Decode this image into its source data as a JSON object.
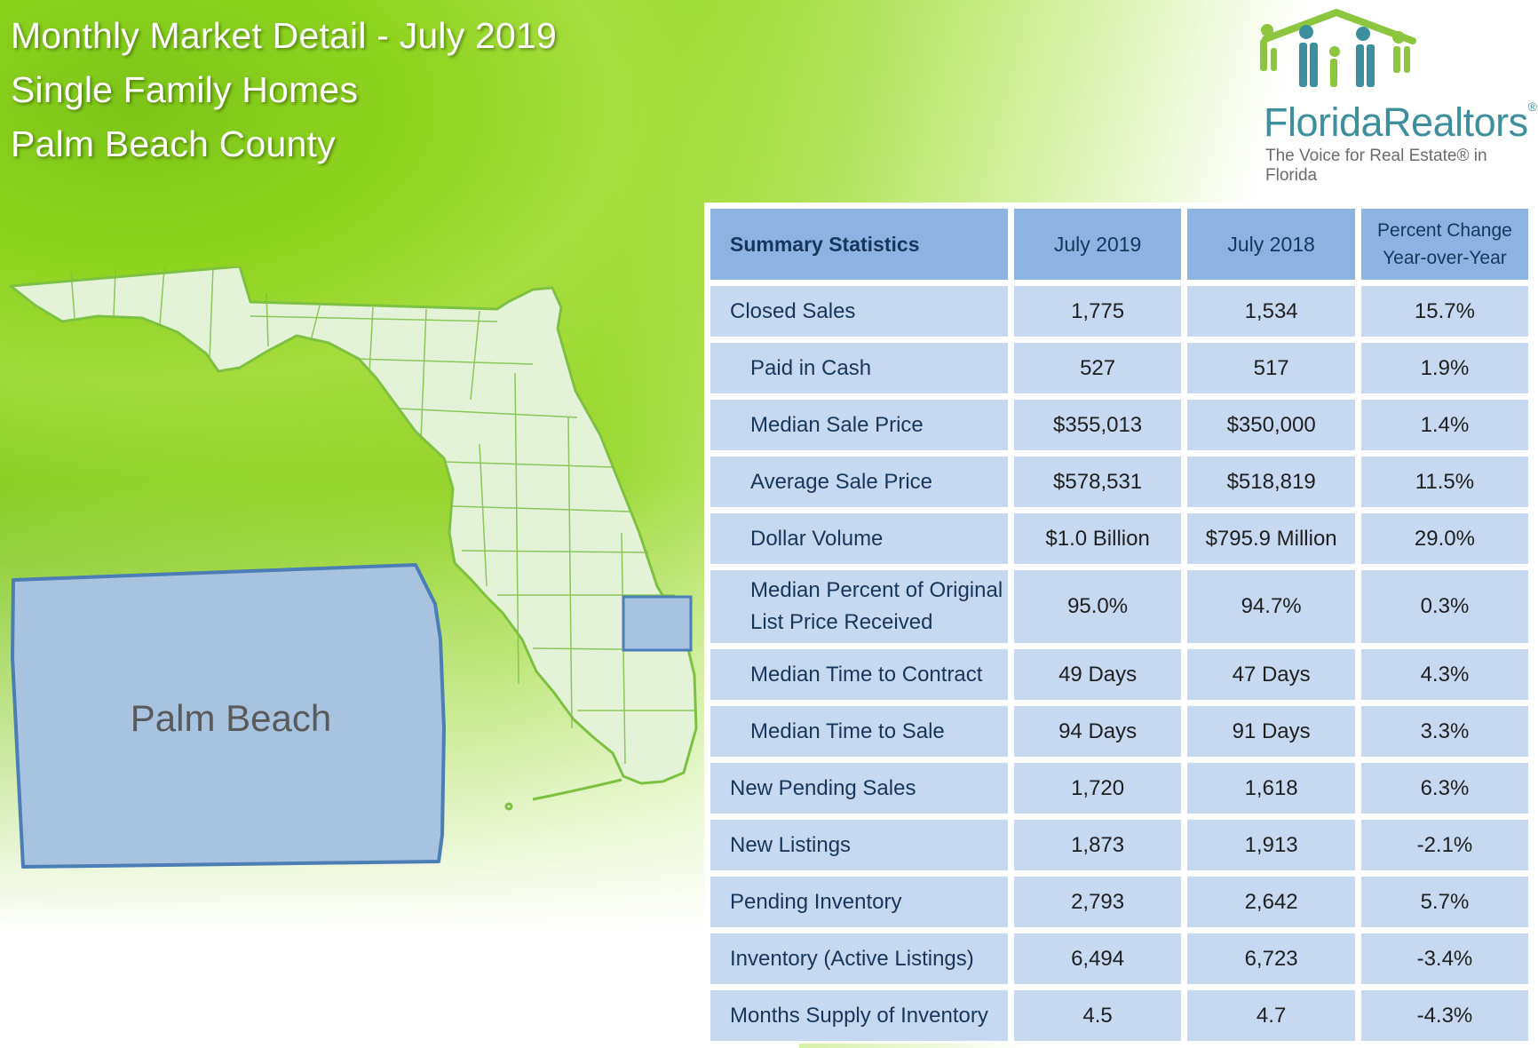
{
  "header": {
    "title_line1": "Monthly Market Detail - July 2019",
    "title_line2": "Single Family Homes",
    "title_line3": "Palm Beach County"
  },
  "logo": {
    "name_part1": "Florida",
    "name_part2": "Realtors",
    "registered": "®",
    "tagline": "The Voice for Real Estate® in Florida"
  },
  "map": {
    "region_label": "Palm Beach",
    "highlight_color": "#a7c3e0",
    "state_fill": "#e4f2d8",
    "border_color": "#7cc142"
  },
  "table": {
    "headers": [
      "Summary Statistics",
      "July 2019",
      "July 2018"
    ],
    "pct_header_line1": "Percent Change",
    "pct_header_line2": "Year-over-Year",
    "rows": [
      {
        "label": "Closed Sales",
        "v2019": "1,775",
        "v2018": "1,534",
        "pct": "15.7%"
      },
      {
        "label": "Paid in Cash",
        "v2019": "527",
        "v2018": "517",
        "pct": "1.9%"
      },
      {
        "label": "Median Sale Price",
        "v2019": "$355,013",
        "v2018": "$350,000",
        "pct": "1.4%"
      },
      {
        "label": "Average Sale Price",
        "v2019": "$578,531",
        "v2018": "$518,819",
        "pct": "11.5%"
      },
      {
        "label": "Dollar Volume",
        "v2019": "$1.0 Billion",
        "v2018": "$795.9 Million",
        "pct": "29.0%"
      },
      {
        "label_line1": "Median Percent of Original",
        "label_line2": "List Price Received",
        "v2019": "95.0%",
        "v2018": "94.7%",
        "pct": "0.3%"
      },
      {
        "label": "Median Time to Contract",
        "v2019": "49 Days",
        "v2018": "47 Days",
        "pct": "4.3%"
      },
      {
        "label": "Median Time to Sale",
        "v2019": "94 Days",
        "v2018": "91 Days",
        "pct": "3.3%"
      },
      {
        "label": "New Pending Sales",
        "v2019": "1,720",
        "v2018": "1,618",
        "pct": "6.3%"
      },
      {
        "label": "New Listings",
        "v2019": "1,873",
        "v2018": "1,913",
        "pct": "-2.1%"
      },
      {
        "label": "Pending Inventory",
        "v2019": "2,793",
        "v2018": "2,642",
        "pct": "5.7%"
      },
      {
        "label": "Inventory (Active Listings)",
        "v2019": "6,494",
        "v2018": "6,723",
        "pct": "-3.4%"
      },
      {
        "label": "Months Supply of Inventory",
        "v2019": "4.5",
        "v2018": "4.7",
        "pct": "-4.3%"
      }
    ]
  }
}
